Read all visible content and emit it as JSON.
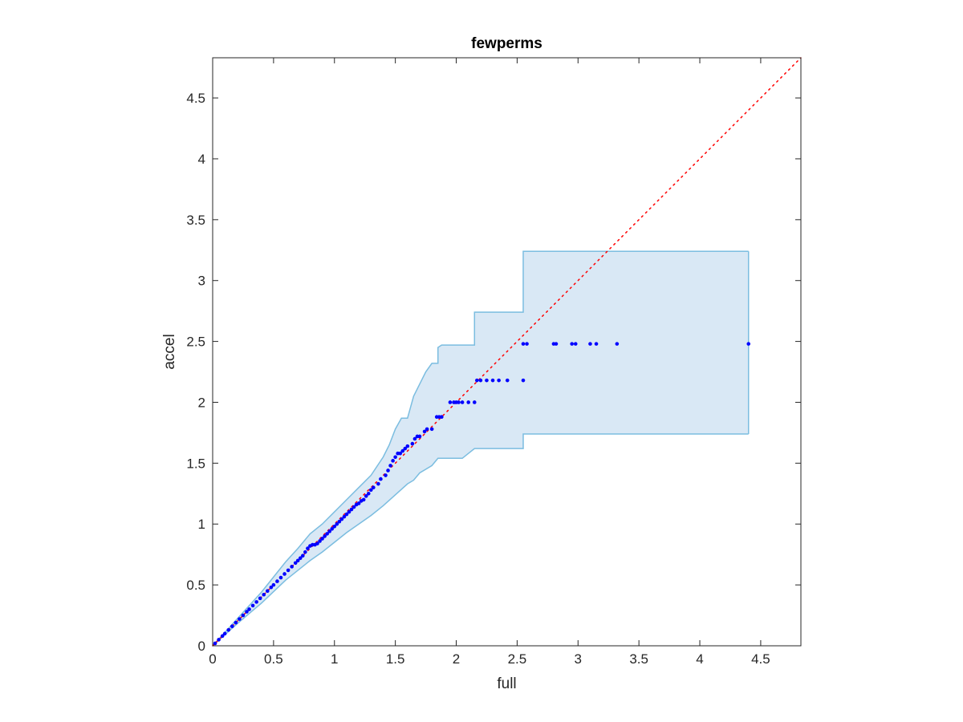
{
  "chart_data": {
    "type": "scatter",
    "title": "fewperms",
    "xlabel": "full",
    "ylabel": "accel",
    "xlim": [
      0,
      4.83
    ],
    "ylim": [
      0,
      4.83
    ],
    "xticks": [
      0,
      0.5,
      1,
      1.5,
      2,
      2.5,
      3,
      3.5,
      4,
      4.5
    ],
    "yticks": [
      0,
      0.5,
      1,
      1.5,
      2,
      2.5,
      3,
      3.5,
      4,
      4.5
    ],
    "xtick_labels": [
      "0",
      "0.5",
      "1",
      "1.5",
      "2",
      "2.5",
      "3",
      "3.5",
      "4",
      "4.5"
    ],
    "ytick_labels": [
      "0",
      "0.5",
      "1",
      "1.5",
      "2",
      "2.5",
      "3",
      "3.5",
      "4",
      "4.5"
    ],
    "grid": false,
    "colors": {
      "points": "#0000ff",
      "reference_line": "#ff0000",
      "band_fill": "#d9e8f5",
      "band_edge": "#7bbde0",
      "axes": "#262626"
    },
    "reference_line": {
      "x": [
        0,
        4.83
      ],
      "y": [
        0,
        4.83
      ],
      "style": "dotted"
    },
    "confidence_band": {
      "upper": [
        [
          0,
          0
        ],
        [
          0.2,
          0.22
        ],
        [
          0.4,
          0.44
        ],
        [
          0.6,
          0.69
        ],
        [
          0.7,
          0.8
        ],
        [
          0.8,
          0.92
        ],
        [
          0.9,
          1.0
        ],
        [
          1.0,
          1.1
        ],
        [
          1.1,
          1.2
        ],
        [
          1.2,
          1.3
        ],
        [
          1.3,
          1.4
        ],
        [
          1.4,
          1.55
        ],
        [
          1.45,
          1.65
        ],
        [
          1.5,
          1.78
        ],
        [
          1.55,
          1.87
        ],
        [
          1.6,
          1.87
        ],
        [
          1.65,
          2.05
        ],
        [
          1.7,
          2.15
        ],
        [
          1.75,
          2.25
        ],
        [
          1.8,
          2.32
        ],
        [
          1.85,
          2.32
        ],
        [
          1.85,
          2.45
        ],
        [
          1.88,
          2.47
        ],
        [
          2.15,
          2.47
        ],
        [
          2.15,
          2.74
        ],
        [
          2.55,
          2.74
        ],
        [
          2.55,
          3.24
        ],
        [
          4.4,
          3.24
        ]
      ],
      "lower": [
        [
          0,
          0
        ],
        [
          0.2,
          0.18
        ],
        [
          0.4,
          0.35
        ],
        [
          0.6,
          0.54
        ],
        [
          0.7,
          0.62
        ],
        [
          0.8,
          0.7
        ],
        [
          0.9,
          0.77
        ],
        [
          1.0,
          0.85
        ],
        [
          1.1,
          0.93
        ],
        [
          1.2,
          1.0
        ],
        [
          1.3,
          1.07
        ],
        [
          1.4,
          1.15
        ],
        [
          1.5,
          1.24
        ],
        [
          1.6,
          1.33
        ],
        [
          1.65,
          1.36
        ],
        [
          1.7,
          1.42
        ],
        [
          1.8,
          1.48
        ],
        [
          1.85,
          1.54
        ],
        [
          2.05,
          1.54
        ],
        [
          2.1,
          1.58
        ],
        [
          2.15,
          1.62
        ],
        [
          2.55,
          1.62
        ],
        [
          2.55,
          1.74
        ],
        [
          4.4,
          1.74
        ]
      ]
    },
    "series": [
      {
        "x": [
          0.02,
          0.05,
          0.08,
          0.1,
          0.13,
          0.16,
          0.19,
          0.22,
          0.25,
          0.28,
          0.3,
          0.33,
          0.36,
          0.39,
          0.42,
          0.45,
          0.48,
          0.5,
          0.53,
          0.56,
          0.59,
          0.62,
          0.65,
          0.68,
          0.7,
          0.72,
          0.74,
          0.76,
          0.78,
          0.8,
          0.82,
          0.84,
          0.86,
          0.88,
          0.9,
          0.92,
          0.94,
          0.96,
          0.98,
          1.0,
          1.02,
          1.04,
          1.06,
          1.08,
          1.1,
          1.12,
          1.14,
          1.16,
          1.18,
          1.2,
          1.22,
          1.24,
          1.26,
          1.28,
          1.3,
          1.32,
          1.36,
          1.38,
          1.42,
          1.44,
          1.46,
          1.48,
          1.5,
          1.52,
          1.54,
          1.56,
          1.58,
          1.6,
          1.64,
          1.66,
          1.68,
          1.7,
          1.74,
          1.76,
          1.8,
          1.84,
          1.86,
          1.88,
          1.95,
          1.98,
          2.0,
          2.02,
          2.05,
          2.1,
          2.15,
          2.17,
          2.2,
          2.25,
          2.3,
          2.35,
          2.42,
          2.55,
          2.55,
          2.58,
          2.8,
          2.82,
          2.95,
          2.98,
          3.1,
          3.15,
          3.32,
          4.4
        ],
        "y": [
          0.02,
          0.05,
          0.08,
          0.1,
          0.13,
          0.16,
          0.19,
          0.22,
          0.25,
          0.28,
          0.3,
          0.33,
          0.36,
          0.39,
          0.42,
          0.45,
          0.48,
          0.5,
          0.53,
          0.56,
          0.59,
          0.62,
          0.65,
          0.68,
          0.7,
          0.72,
          0.74,
          0.77,
          0.8,
          0.82,
          0.83,
          0.83,
          0.84,
          0.86,
          0.88,
          0.9,
          0.92,
          0.94,
          0.96,
          0.98,
          1.0,
          1.02,
          1.04,
          1.06,
          1.08,
          1.1,
          1.12,
          1.14,
          1.16,
          1.17,
          1.19,
          1.2,
          1.23,
          1.25,
          1.28,
          1.3,
          1.33,
          1.37,
          1.4,
          1.44,
          1.48,
          1.52,
          1.55,
          1.58,
          1.58,
          1.6,
          1.62,
          1.64,
          1.66,
          1.7,
          1.72,
          1.72,
          1.76,
          1.78,
          1.78,
          1.88,
          1.88,
          1.88,
          2.0,
          2.0,
          2.0,
          2.0,
          2.0,
          2.0,
          2.0,
          2.18,
          2.18,
          2.18,
          2.18,
          2.18,
          2.18,
          2.18,
          2.48,
          2.48,
          2.48,
          2.48,
          2.48,
          2.48,
          2.48,
          2.48,
          2.48,
          2.48
        ]
      }
    ]
  }
}
